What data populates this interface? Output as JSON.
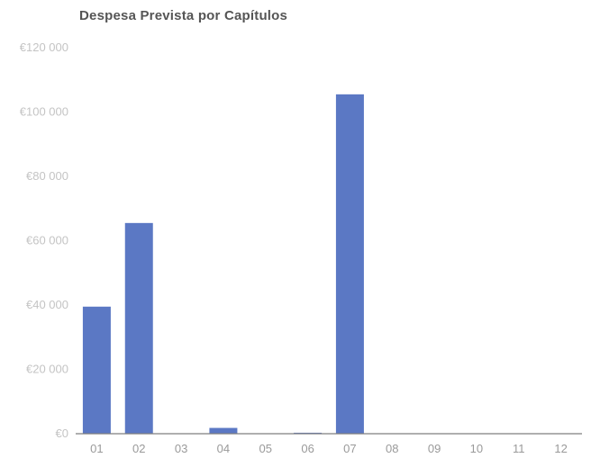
{
  "chart_data": {
    "type": "bar",
    "title": "Despesa Prevista por Capítulos",
    "xlabel": "",
    "ylabel": "",
    "categories": [
      "01",
      "02",
      "03",
      "04",
      "05",
      "06",
      "07",
      "08",
      "09",
      "10",
      "11",
      "12"
    ],
    "values": [
      39500,
      65500,
      0,
      1800,
      0,
      300,
      105500,
      0,
      0,
      0,
      0,
      0
    ],
    "ylim": [
      0,
      120000
    ],
    "y_ticks": [
      0,
      20000,
      40000,
      60000,
      80000,
      100000,
      120000
    ],
    "y_tick_labels": [
      "€0",
      "€20 000",
      "€40 000",
      "€60 000",
      "€80 000",
      "€100 000",
      "€120 000"
    ],
    "grid": false,
    "bar_color": "#5b78c4",
    "baseline_color": "#7f7f7f"
  }
}
